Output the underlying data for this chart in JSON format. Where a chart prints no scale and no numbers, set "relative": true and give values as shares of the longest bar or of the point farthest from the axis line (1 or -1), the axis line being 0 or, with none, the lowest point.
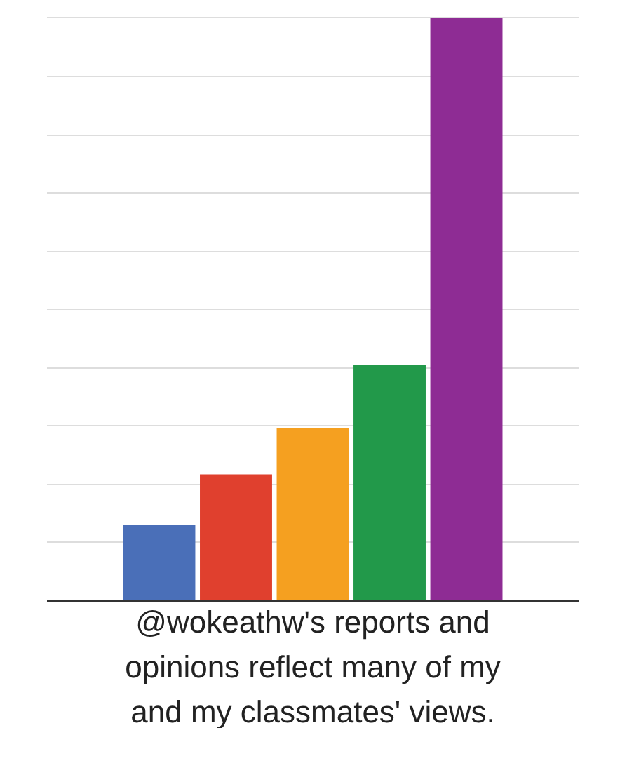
{
  "chart_data": {
    "type": "bar",
    "relative": true,
    "xlabel": "@wokeathw's reports and opinions reflect many of my and my classmates' views.",
    "categories": [
      null,
      null,
      null,
      null,
      null
    ],
    "values": [
      0.13,
      0.216,
      0.296,
      0.404,
      1
    ],
    "colors": [
      "#4a6fb8",
      "#e0402e",
      "#f5a020",
      "#22994a",
      "#8e2c94"
    ],
    "grid": true
  }
}
